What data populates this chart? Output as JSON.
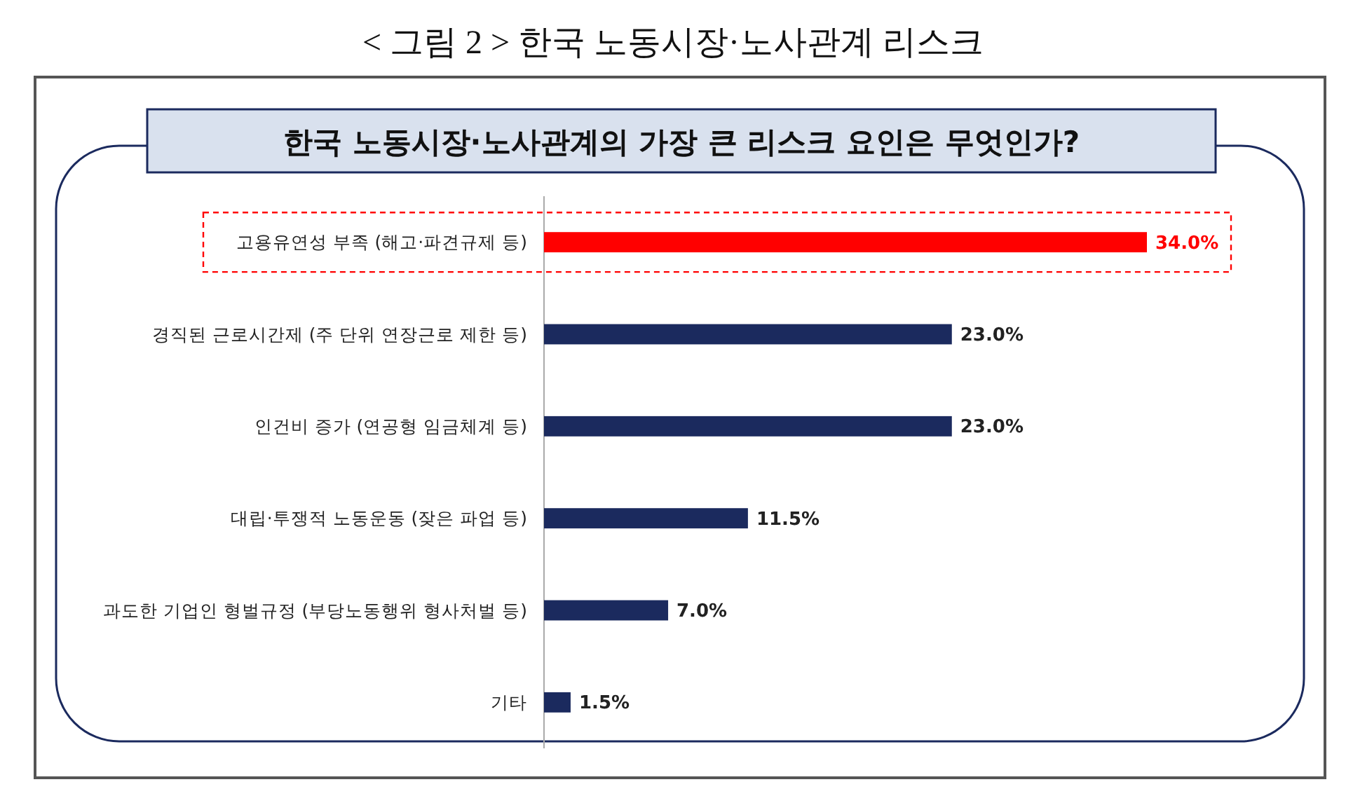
{
  "chart_data": {
    "type": "bar",
    "orientation": "horizontal",
    "title": "< 그림 2 > 한국 노동시장·노사관계 리스크",
    "subtitle": "한국 노동시장·노사관계의 가장 큰 리스크 요인은 무엇인가?",
    "categories": [
      "고용유연성 부족 (해고·파견규제 등)",
      "경직된 근로시간제 (주 단위 연장근로 제한 등)",
      "인건비 증가 (연공형 임금체계 등)",
      "대립·투쟁적 노동운동 (잦은 파업 등)",
      "과도한 기업인 형벌규정 (부당노동행위 형사처벌 등)",
      "기타"
    ],
    "values": [
      34.0,
      23.0,
      23.0,
      11.5,
      7.0,
      1.5
    ],
    "colors": [
      "#ff0000",
      "#1b2a5e",
      "#1b2a5e",
      "#1b2a5e",
      "#1b2a5e",
      "#1b2a5e"
    ],
    "value_labels": [
      "34.0%",
      "23.0%",
      "23.0%",
      "11.5%",
      "7.0%",
      "1.5%"
    ]
  }
}
